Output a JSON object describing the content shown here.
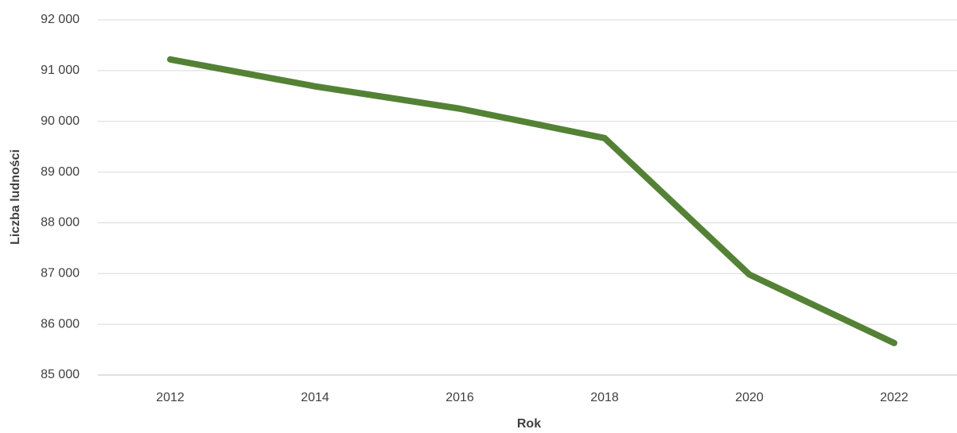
{
  "chart_data": {
    "type": "line",
    "x_label": "Rok",
    "y_label": "Liczba ludności",
    "categories": [
      "2012",
      "2014",
      "2016",
      "2018",
      "2020",
      "2022"
    ],
    "series": [
      {
        "name": "Liczba ludności",
        "color": "#548235",
        "values": [
          91220,
          90690,
          90250,
          89670,
          86980,
          85630
        ]
      }
    ],
    "ylim": [
      85000,
      92000
    ],
    "yticks": [
      {
        "value": 85000,
        "label": "85 000"
      },
      {
        "value": 86000,
        "label": "86 000"
      },
      {
        "value": 87000,
        "label": "87 000"
      },
      {
        "value": 88000,
        "label": "88 000"
      },
      {
        "value": 89000,
        "label": "89 000"
      },
      {
        "value": 90000,
        "label": "90 000"
      },
      {
        "value": 91000,
        "label": "91 000"
      },
      {
        "value": 92000,
        "label": "92 000"
      }
    ],
    "grid": true
  }
}
